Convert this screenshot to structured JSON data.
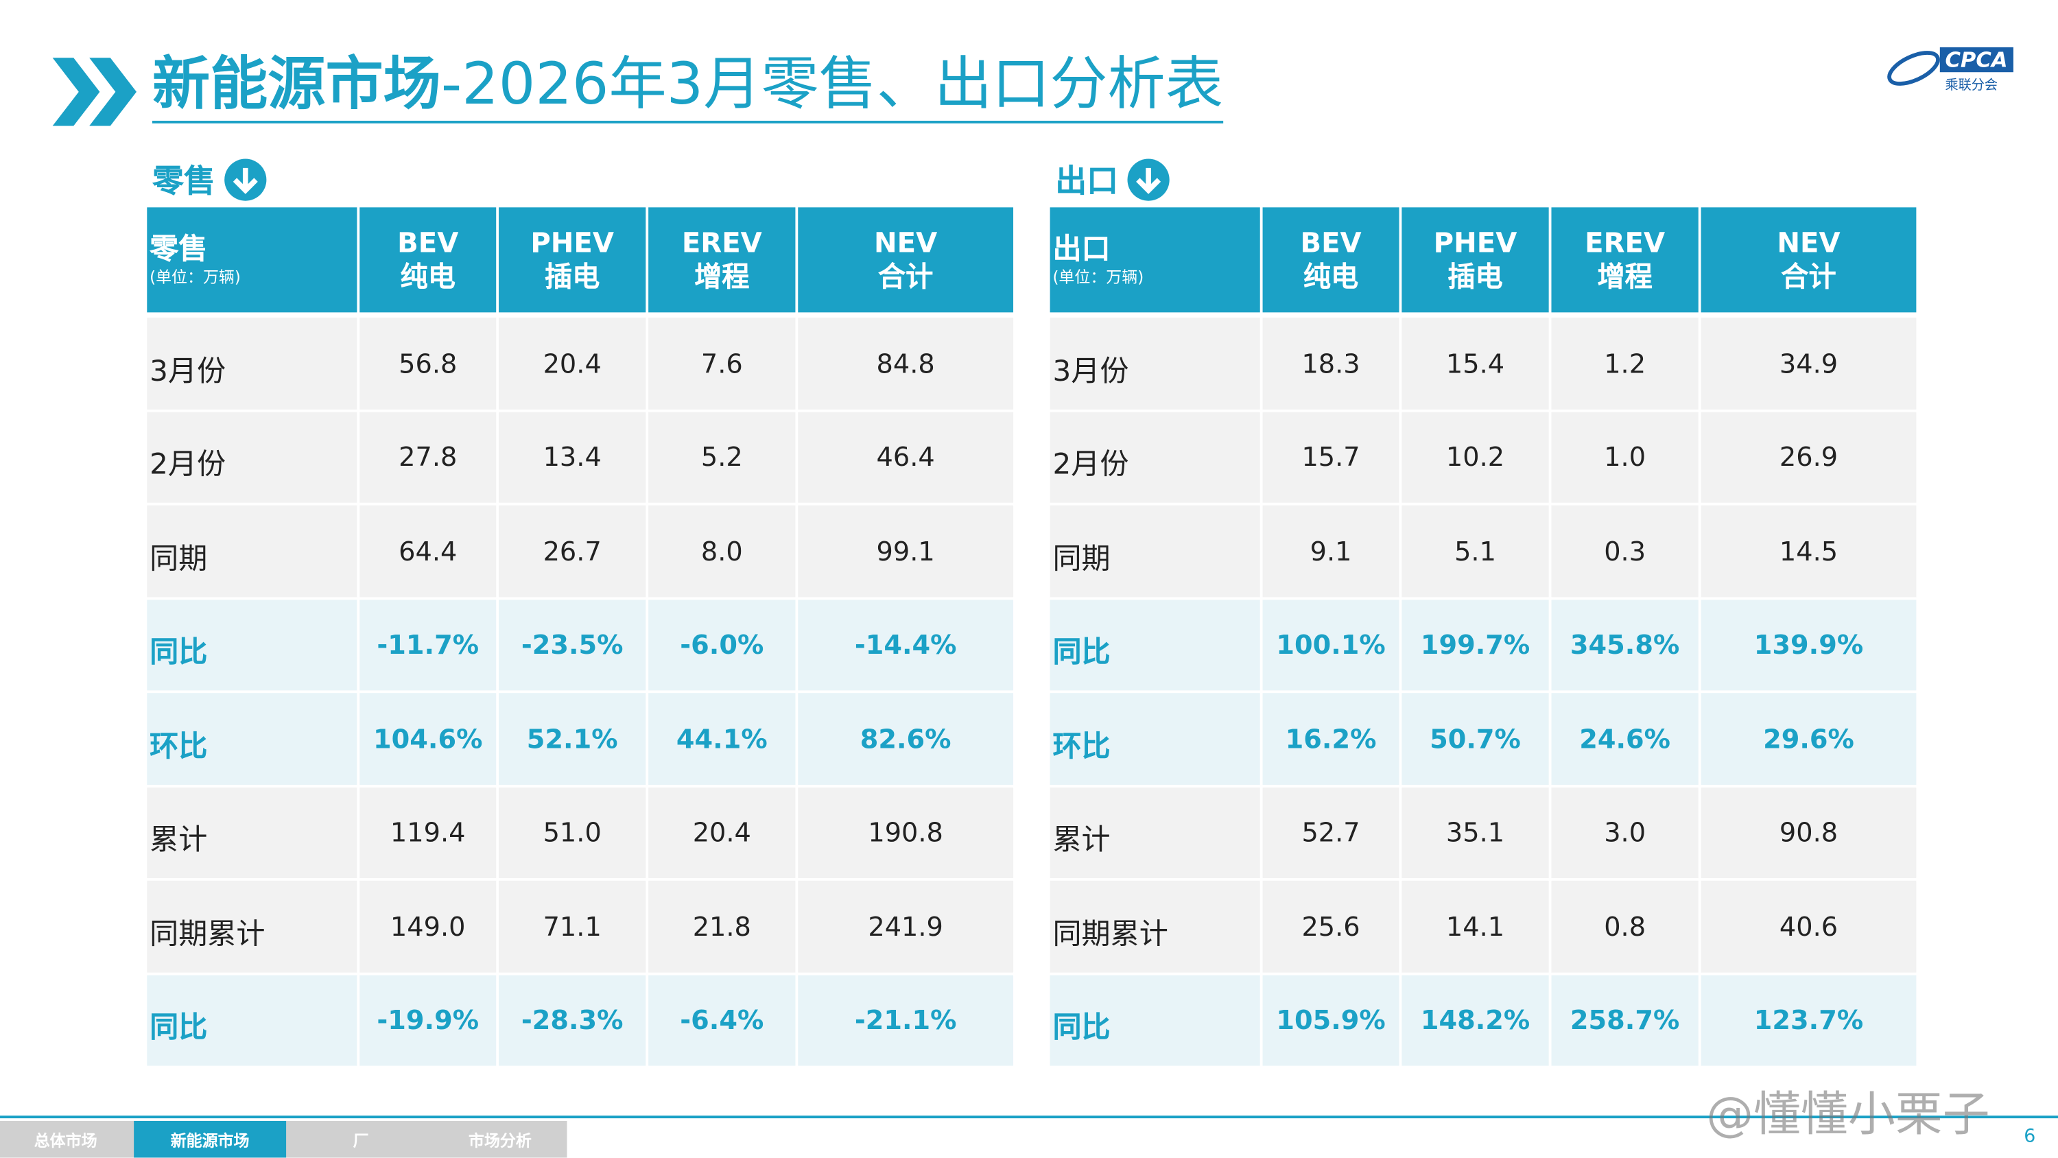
{
  "header": {
    "title_main": "新能源市场",
    "title_rest": "-2026年3月零售、出口分析表",
    "logo": "CPCA",
    "logo_sub": "乘联分会"
  },
  "tables": [
    {
      "section": "零售",
      "corner": {
        "label": "零售",
        "unit": "(单位：万辆)"
      },
      "columns": [
        {
          "code": "BEV",
          "name": "纯电"
        },
        {
          "code": "PHEV",
          "name": "插电"
        },
        {
          "code": "EREV",
          "name": "增程"
        },
        {
          "code": "NEV",
          "name": "合计"
        }
      ],
      "rows": [
        {
          "label": "3月份",
          "cells": [
            "56.8",
            "20.4",
            "7.6",
            "84.8"
          ],
          "highlight": false
        },
        {
          "label": "2月份",
          "cells": [
            "27.8",
            "13.4",
            "5.2",
            "46.4"
          ],
          "highlight": false
        },
        {
          "label": "同期",
          "cells": [
            "64.4",
            "26.7",
            "8.0",
            "99.1"
          ],
          "highlight": false
        },
        {
          "label": "同比",
          "cells": [
            "-11.7%",
            "-23.5%",
            "-6.0%",
            "-14.4%"
          ],
          "highlight": true
        },
        {
          "label": "环比",
          "cells": [
            "104.6%",
            "52.1%",
            "44.1%",
            "82.6%"
          ],
          "highlight": true
        },
        {
          "label": "累计",
          "cells": [
            "119.4",
            "51.0",
            "20.4",
            "190.8"
          ],
          "highlight": false
        },
        {
          "label": "同期累计",
          "cells": [
            "149.0",
            "71.1",
            "21.8",
            "241.9"
          ],
          "highlight": false
        },
        {
          "label": "同比",
          "cells": [
            "-19.9%",
            "-28.3%",
            "-6.4%",
            "-21.1%"
          ],
          "highlight": true
        }
      ]
    },
    {
      "section": "出口",
      "corner": {
        "label": "出口",
        "unit": "(单位：万辆)"
      },
      "columns": [
        {
          "code": "BEV",
          "name": "纯电"
        },
        {
          "code": "PHEV",
          "name": "插电"
        },
        {
          "code": "EREV",
          "name": "增程"
        },
        {
          "code": "NEV",
          "name": "合计"
        }
      ],
      "rows": [
        {
          "label": "3月份",
          "cells": [
            "18.3",
            "15.4",
            "1.2",
            "34.9"
          ],
          "highlight": false
        },
        {
          "label": "2月份",
          "cells": [
            "15.7",
            "10.2",
            "1.0",
            "26.9"
          ],
          "highlight": false
        },
        {
          "label": "同期",
          "cells": [
            "9.1",
            "5.1",
            "0.3",
            "14.5"
          ],
          "highlight": false
        },
        {
          "label": "同比",
          "cells": [
            "100.1%",
            "199.7%",
            "345.8%",
            "139.9%"
          ],
          "highlight": true
        },
        {
          "label": "环比",
          "cells": [
            "16.2%",
            "50.7%",
            "24.6%",
            "29.6%"
          ],
          "highlight": true
        },
        {
          "label": "累计",
          "cells": [
            "52.7",
            "35.1",
            "3.0",
            "90.8"
          ],
          "highlight": false
        },
        {
          "label": "同期累计",
          "cells": [
            "25.6",
            "14.1",
            "0.8",
            "40.6"
          ],
          "highlight": false
        },
        {
          "label": "同比",
          "cells": [
            "105.9%",
            "148.2%",
            "258.7%",
            "123.7%"
          ],
          "highlight": true
        }
      ]
    }
  ],
  "footer": {
    "tabs": [
      "总体市场",
      "新能源市场",
      "厂",
      "市场分析"
    ],
    "active_tab": 1,
    "page": "6",
    "watermark": "@懂懂小栗子"
  }
}
